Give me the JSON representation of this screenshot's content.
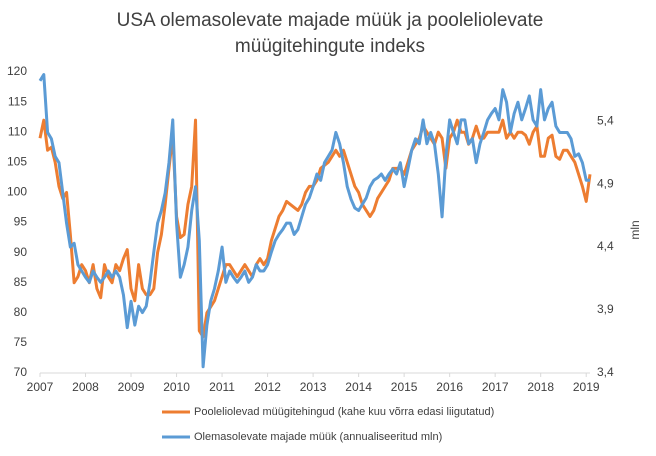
{
  "chart_data": {
    "type": "line",
    "title": "USA olemasolevate majade müük ja pooleliolevate müügitehingute indeks",
    "y2label": "mln",
    "categories": [
      "2007",
      null,
      null,
      null,
      null,
      null,
      null,
      null,
      null,
      null,
      null,
      null,
      "2008",
      null,
      null,
      null,
      null,
      null,
      null,
      null,
      null,
      null,
      null,
      null,
      "2009",
      null,
      null,
      null,
      null,
      null,
      null,
      null,
      null,
      null,
      null,
      null,
      "2010",
      null,
      null,
      null,
      null,
      null,
      null,
      null,
      null,
      null,
      null,
      null,
      "2011",
      null,
      null,
      null,
      null,
      null,
      null,
      null,
      null,
      null,
      null,
      null,
      "2012",
      null,
      null,
      null,
      null,
      null,
      null,
      null,
      null,
      null,
      null,
      null,
      "2013",
      null,
      null,
      null,
      null,
      null,
      null,
      null,
      null,
      null,
      null,
      null,
      "2014",
      null,
      null,
      null,
      null,
      null,
      null,
      null,
      null,
      null,
      null,
      null,
      "2015",
      null,
      null,
      null,
      null,
      null,
      null,
      null,
      null,
      null,
      null,
      null,
      "2016",
      null,
      null,
      null,
      null,
      null,
      null,
      null,
      null,
      null,
      null,
      null,
      "2017",
      null,
      null,
      null,
      null,
      null,
      null,
      null,
      null,
      null,
      null,
      null,
      "2018",
      null,
      null,
      null,
      null,
      null,
      null,
      null,
      null,
      null,
      null,
      null,
      "2019",
      null
    ],
    "series": [
      {
        "name": "Pooleliolevad müügitehingud (kahe kuu võrra edasi liigutatud)",
        "color": "#ED7D31",
        "axis": "y",
        "values": [
          109,
          112,
          107,
          107.5,
          105,
          101,
          99,
          100,
          93,
          85,
          86,
          88,
          87,
          85,
          88,
          84,
          82.5,
          88,
          86,
          85,
          88,
          87,
          89,
          90.5,
          84,
          82,
          88,
          84,
          83,
          83,
          84,
          90,
          93,
          98,
          104,
          109.5,
          96,
          92.5,
          93,
          98,
          101,
          112,
          77,
          76,
          80,
          81,
          82,
          84,
          86,
          88,
          88,
          87,
          86,
          87,
          88,
          87,
          86,
          88,
          89,
          88,
          89,
          92,
          94,
          96,
          97,
          98.5,
          98,
          97.5,
          97,
          98,
          100,
          101,
          101,
          102,
          104,
          104.5,
          105,
          106,
          107,
          106,
          107,
          105,
          103,
          101,
          100,
          98,
          97,
          96,
          97,
          99,
          100,
          101,
          102,
          104,
          104,
          104,
          103,
          105,
          107,
          108,
          109,
          111,
          110,
          109,
          108,
          110,
          109,
          104,
          109,
          110,
          112,
          110,
          110,
          108,
          109,
          111,
          109,
          109,
          110,
          110,
          110,
          110,
          112,
          109,
          110,
          109,
          110,
          110,
          109.5,
          108,
          110,
          111,
          106,
          106,
          109,
          109.5,
          106,
          105.5,
          107,
          107,
          106,
          105,
          103,
          101,
          98.5,
          103
        ]
      },
      {
        "name": "Olemasolevate majade müük (annualiseeritud mln)",
        "color": "#5B9BD5",
        "axis": "y2",
        "values": [
          5.72,
          5.77,
          5.31,
          5.26,
          5.12,
          5.07,
          4.83,
          4.59,
          4.4,
          4.43,
          4.26,
          4.21,
          4.16,
          4.12,
          4.21,
          4.16,
          4.12,
          4.16,
          4.21,
          4.16,
          4.21,
          4.16,
          4.02,
          3.76,
          3.97,
          3.78,
          3.93,
          3.88,
          3.93,
          4.12,
          4.36,
          4.59,
          4.69,
          4.83,
          5.07,
          5.41,
          4.59,
          4.16,
          4.26,
          4.4,
          4.69,
          4.88,
          4.45,
          3.45,
          3.78,
          3.97,
          4.07,
          4.21,
          4.4,
          4.12,
          4.21,
          4.16,
          4.12,
          4.16,
          4.21,
          4.12,
          4.16,
          4.26,
          4.21,
          4.21,
          4.26,
          4.36,
          4.45,
          4.5,
          4.54,
          4.59,
          4.59,
          4.5,
          4.54,
          4.64,
          4.74,
          4.79,
          4.88,
          4.98,
          4.93,
          5.07,
          5.12,
          5.17,
          5.31,
          5.22,
          5.07,
          4.88,
          4.78,
          4.71,
          4.69,
          4.74,
          4.79,
          4.88,
          4.93,
          4.95,
          4.98,
          4.93,
          4.98,
          5.02,
          4.98,
          5.07,
          4.88,
          5.02,
          5.17,
          5.26,
          5.22,
          5.41,
          5.22,
          5.31,
          5.22,
          4.98,
          4.64,
          5.12,
          5.41,
          5.31,
          5.22,
          5.41,
          5.41,
          5.22,
          5.26,
          5.07,
          5.22,
          5.31,
          5.41,
          5.46,
          5.5,
          5.41,
          5.65,
          5.55,
          5.31,
          5.46,
          5.55,
          5.41,
          5.5,
          5.6,
          5.41,
          5.36,
          5.65,
          5.41,
          5.5,
          5.55,
          5.36,
          5.31,
          5.31,
          5.31,
          5.26,
          5.12,
          5.14,
          5.07,
          4.93,
          4.93
        ]
      }
    ],
    "ylim": [
      70,
      120
    ],
    "yticks": [
      70,
      75,
      80,
      85,
      90,
      95,
      100,
      105,
      110,
      115,
      120
    ],
    "y2lim": [
      3.4,
      5.79
    ],
    "y2ticks": [
      {
        "value": 3.4,
        "label": "3,4"
      },
      {
        "value": 3.9,
        "label": "3,9"
      },
      {
        "value": 4.4,
        "label": "4,4"
      },
      {
        "value": 4.9,
        "label": "4,9"
      },
      {
        "value": 5.4,
        "label": "5,4"
      }
    ],
    "grid": false
  }
}
